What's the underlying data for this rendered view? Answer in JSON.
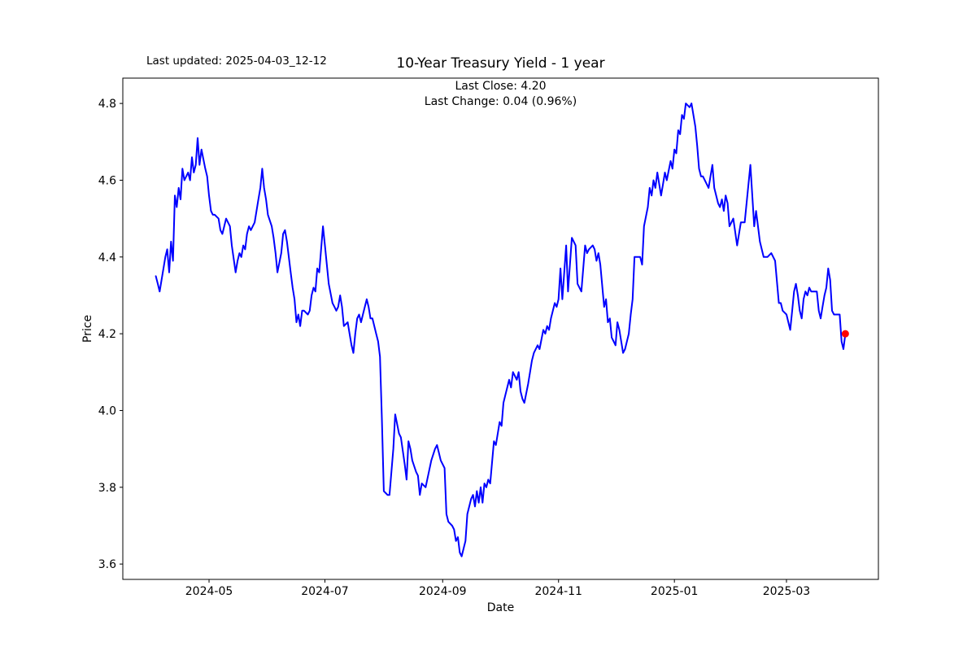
{
  "figure": {
    "last_updated_text": "Last updated: 2025-04-03_12-12",
    "title": "10-Year Treasury Yield - 1 year",
    "subtitle_lines": [
      "Last Close: 4.20",
      "Last Change: 0.04 (0.96%)"
    ],
    "background_color": "#ffffff",
    "text_color": "#000000"
  },
  "chart_data": {
    "type": "line",
    "title": "10-Year Treasury Yield - 1 year",
    "xlabel": "Date",
    "ylabel": "Price",
    "grid": false,
    "legend": "none",
    "line_color": "#0000ff",
    "marker_color": "#ff0000",
    "axis_color": "#000000",
    "last_close": "4.20",
    "last_change": "0.04 (0.96%)",
    "x_start_date": "2024-04-03",
    "x_domain_days": [
      -17.4,
      380.4
    ],
    "y_domain": [
      3.56,
      4.866
    ],
    "x_ticks": [
      {
        "day": 28,
        "label": "2024-05"
      },
      {
        "day": 89,
        "label": "2024-07"
      },
      {
        "day": 151,
        "label": "2024-09"
      },
      {
        "day": 212,
        "label": "2024-11"
      },
      {
        "day": 273,
        "label": "2025-01"
      },
      {
        "day": 332,
        "label": "2025-03"
      }
    ],
    "y_ticks": [
      {
        "value": 3.6,
        "label": "3.6"
      },
      {
        "value": 3.8,
        "label": "3.8"
      },
      {
        "value": 4.0,
        "label": "4.0"
      },
      {
        "value": 4.2,
        "label": "4.2"
      },
      {
        "value": 4.4,
        "label": "4.4"
      },
      {
        "value": 4.6,
        "label": "4.6"
      },
      {
        "value": 4.8,
        "label": "4.8"
      }
    ],
    "last_point_marker": {
      "day": 363,
      "value": 4.2,
      "color": "#ff0000"
    },
    "series": [
      {
        "name": "10-Year Treasury Yield",
        "points": [
          [
            0,
            4.35
          ],
          [
            1,
            4.33
          ],
          [
            2,
            4.31
          ],
          [
            5,
            4.4
          ],
          [
            6,
            4.42
          ],
          [
            7,
            4.36
          ],
          [
            8,
            4.44
          ],
          [
            9,
            4.39
          ],
          [
            10,
            4.56
          ],
          [
            11,
            4.53
          ],
          [
            12,
            4.58
          ],
          [
            13,
            4.55
          ],
          [
            14,
            4.63
          ],
          [
            15,
            4.6
          ],
          [
            17,
            4.62
          ],
          [
            18,
            4.6
          ],
          [
            19,
            4.66
          ],
          [
            20,
            4.62
          ],
          [
            21,
            4.64
          ],
          [
            22,
            4.71
          ],
          [
            23,
            4.64
          ],
          [
            24,
            4.68
          ],
          [
            26,
            4.63
          ],
          [
            27,
            4.61
          ],
          [
            28,
            4.56
          ],
          [
            29,
            4.52
          ],
          [
            30,
            4.51
          ],
          [
            31,
            4.51
          ],
          [
            33,
            4.5
          ],
          [
            34,
            4.47
          ],
          [
            35,
            4.46
          ],
          [
            36,
            4.48
          ],
          [
            37,
            4.5
          ],
          [
            39,
            4.48
          ],
          [
            40,
            4.43
          ],
          [
            42,
            4.36
          ],
          [
            43,
            4.39
          ],
          [
            44,
            4.41
          ],
          [
            45,
            4.4
          ],
          [
            46,
            4.43
          ],
          [
            47,
            4.42
          ],
          [
            48,
            4.46
          ],
          [
            49,
            4.48
          ],
          [
            50,
            4.47
          ],
          [
            52,
            4.49
          ],
          [
            54,
            4.55
          ],
          [
            55,
            4.58
          ],
          [
            56,
            4.63
          ],
          [
            57,
            4.58
          ],
          [
            58,
            4.55
          ],
          [
            59,
            4.51
          ],
          [
            61,
            4.48
          ],
          [
            62,
            4.45
          ],
          [
            63,
            4.41
          ],
          [
            64,
            4.36
          ],
          [
            66,
            4.41
          ],
          [
            67,
            4.46
          ],
          [
            68,
            4.47
          ],
          [
            69,
            4.44
          ],
          [
            71,
            4.36
          ],
          [
            72,
            4.32
          ],
          [
            73,
            4.29
          ],
          [
            74,
            4.23
          ],
          [
            75,
            4.25
          ],
          [
            76,
            4.22
          ],
          [
            77,
            4.26
          ],
          [
            78,
            4.26
          ],
          [
            80,
            4.25
          ],
          [
            81,
            4.26
          ],
          [
            82,
            4.3
          ],
          [
            83,
            4.32
          ],
          [
            84,
            4.31
          ],
          [
            85,
            4.37
          ],
          [
            86,
            4.36
          ],
          [
            88,
            4.48
          ],
          [
            89,
            4.43
          ],
          [
            91,
            4.33
          ],
          [
            93,
            4.28
          ],
          [
            94,
            4.27
          ],
          [
            95,
            4.26
          ],
          [
            96,
            4.27
          ],
          [
            97,
            4.3
          ],
          [
            98,
            4.27
          ],
          [
            99,
            4.22
          ],
          [
            101,
            4.23
          ],
          [
            102,
            4.2
          ],
          [
            103,
            4.17
          ],
          [
            104,
            4.15
          ],
          [
            105,
            4.2
          ],
          [
            106,
            4.24
          ],
          [
            107,
            4.25
          ],
          [
            108,
            4.23
          ],
          [
            109,
            4.25
          ],
          [
            111,
            4.29
          ],
          [
            112,
            4.27
          ],
          [
            113,
            4.24
          ],
          [
            114,
            4.24
          ],
          [
            116,
            4.2
          ],
          [
            117,
            4.18
          ],
          [
            118,
            4.14
          ],
          [
            119,
            3.98
          ],
          [
            120,
            3.79
          ],
          [
            122,
            3.78
          ],
          [
            123,
            3.78
          ],
          [
            125,
            3.9
          ],
          [
            126,
            3.99
          ],
          [
            128,
            3.94
          ],
          [
            129,
            3.93
          ],
          [
            131,
            3.86
          ],
          [
            132,
            3.82
          ],
          [
            133,
            3.92
          ],
          [
            134,
            3.9
          ],
          [
            135,
            3.87
          ],
          [
            137,
            3.84
          ],
          [
            138,
            3.83
          ],
          [
            139,
            3.78
          ],
          [
            140,
            3.81
          ],
          [
            142,
            3.8
          ],
          [
            145,
            3.87
          ],
          [
            147,
            3.9
          ],
          [
            148,
            3.91
          ],
          [
            149,
            3.89
          ],
          [
            150,
            3.87
          ],
          [
            152,
            3.85
          ],
          [
            153,
            3.73
          ],
          [
            154,
            3.71
          ],
          [
            156,
            3.7
          ],
          [
            157,
            3.69
          ],
          [
            158,
            3.66
          ],
          [
            159,
            3.67
          ],
          [
            160,
            3.63
          ],
          [
            161,
            3.62
          ],
          [
            163,
            3.66
          ],
          [
            164,
            3.73
          ],
          [
            166,
            3.77
          ],
          [
            167,
            3.78
          ],
          [
            168,
            3.75
          ],
          [
            169,
            3.79
          ],
          [
            170,
            3.76
          ],
          [
            171,
            3.8
          ],
          [
            172,
            3.76
          ],
          [
            173,
            3.81
          ],
          [
            174,
            3.8
          ],
          [
            175,
            3.82
          ],
          [
            176,
            3.81
          ],
          [
            178,
            3.92
          ],
          [
            179,
            3.91
          ],
          [
            181,
            3.97
          ],
          [
            182,
            3.96
          ],
          [
            183,
            4.02
          ],
          [
            184,
            4.04
          ],
          [
            186,
            4.08
          ],
          [
            187,
            4.06
          ],
          [
            188,
            4.1
          ],
          [
            190,
            4.08
          ],
          [
            191,
            4.1
          ],
          [
            192,
            4.05
          ],
          [
            193,
            4.03
          ],
          [
            194,
            4.02
          ],
          [
            196,
            4.07
          ],
          [
            197,
            4.1
          ],
          [
            198,
            4.13
          ],
          [
            199,
            4.15
          ],
          [
            201,
            4.17
          ],
          [
            202,
            4.16
          ],
          [
            204,
            4.21
          ],
          [
            205,
            4.2
          ],
          [
            206,
            4.22
          ],
          [
            207,
            4.21
          ],
          [
            208,
            4.24
          ],
          [
            210,
            4.28
          ],
          [
            211,
            4.27
          ],
          [
            212,
            4.29
          ],
          [
            213,
            4.37
          ],
          [
            214,
            4.29
          ],
          [
            216,
            4.43
          ],
          [
            217,
            4.31
          ],
          [
            219,
            4.45
          ],
          [
            221,
            4.43
          ],
          [
            222,
            4.33
          ],
          [
            224,
            4.31
          ],
          [
            226,
            4.43
          ],
          [
            227,
            4.41
          ],
          [
            228,
            4.42
          ],
          [
            230,
            4.43
          ],
          [
            231,
            4.42
          ],
          [
            232,
            4.39
          ],
          [
            233,
            4.41
          ],
          [
            234,
            4.38
          ],
          [
            236,
            4.27
          ],
          [
            237,
            4.29
          ],
          [
            238,
            4.23
          ],
          [
            239,
            4.24
          ],
          [
            240,
            4.19
          ],
          [
            241,
            4.18
          ],
          [
            242,
            4.17
          ],
          [
            243,
            4.23
          ],
          [
            244,
            4.21
          ],
          [
            245,
            4.18
          ],
          [
            246,
            4.15
          ],
          [
            247,
            4.16
          ],
          [
            249,
            4.2
          ],
          [
            250,
            4.25
          ],
          [
            251,
            4.29
          ],
          [
            252,
            4.4
          ],
          [
            254,
            4.4
          ],
          [
            255,
            4.4
          ],
          [
            256,
            4.38
          ],
          [
            257,
            4.48
          ],
          [
            259,
            4.53
          ],
          [
            260,
            4.58
          ],
          [
            261,
            4.56
          ],
          [
            262,
            4.6
          ],
          [
            263,
            4.58
          ],
          [
            264,
            4.62
          ],
          [
            266,
            4.56
          ],
          [
            267,
            4.59
          ],
          [
            268,
            4.62
          ],
          [
            269,
            4.6
          ],
          [
            271,
            4.65
          ],
          [
            272,
            4.63
          ],
          [
            273,
            4.68
          ],
          [
            274,
            4.67
          ],
          [
            275,
            4.73
          ],
          [
            276,
            4.72
          ],
          [
            277,
            4.77
          ],
          [
            278,
            4.76
          ],
          [
            279,
            4.8
          ],
          [
            281,
            4.79
          ],
          [
            282,
            4.8
          ],
          [
            284,
            4.74
          ],
          [
            285,
            4.69
          ],
          [
            286,
            4.63
          ],
          [
            287,
            4.61
          ],
          [
            288,
            4.61
          ],
          [
            290,
            4.59
          ],
          [
            291,
            4.58
          ],
          [
            293,
            4.64
          ],
          [
            294,
            4.58
          ],
          [
            296,
            4.54
          ],
          [
            297,
            4.53
          ],
          [
            298,
            4.55
          ],
          [
            299,
            4.52
          ],
          [
            300,
            4.56
          ],
          [
            301,
            4.54
          ],
          [
            302,
            4.48
          ],
          [
            304,
            4.5
          ],
          [
            306,
            4.43
          ],
          [
            308,
            4.49
          ],
          [
            310,
            4.49
          ],
          [
            313,
            4.64
          ],
          [
            315,
            4.48
          ],
          [
            316,
            4.52
          ],
          [
            318,
            4.44
          ],
          [
            319,
            4.42
          ],
          [
            320,
            4.4
          ],
          [
            322,
            4.4
          ],
          [
            324,
            4.41
          ],
          [
            326,
            4.39
          ],
          [
            328,
            4.28
          ],
          [
            329,
            4.28
          ],
          [
            330,
            4.26
          ],
          [
            332,
            4.25
          ],
          [
            333,
            4.23
          ],
          [
            334,
            4.21
          ],
          [
            335,
            4.26
          ],
          [
            336,
            4.31
          ],
          [
            337,
            4.33
          ],
          [
            338,
            4.3
          ],
          [
            339,
            4.26
          ],
          [
            340,
            4.24
          ],
          [
            341,
            4.29
          ],
          [
            342,
            4.31
          ],
          [
            343,
            4.3
          ],
          [
            344,
            4.32
          ],
          [
            345,
            4.31
          ],
          [
            346,
            4.31
          ],
          [
            348,
            4.31
          ],
          [
            349,
            4.26
          ],
          [
            350,
            4.24
          ],
          [
            351,
            4.27
          ],
          [
            352,
            4.3
          ],
          [
            353,
            4.32
          ],
          [
            354,
            4.37
          ],
          [
            355,
            4.34
          ],
          [
            356,
            4.26
          ],
          [
            357,
            4.25
          ],
          [
            359,
            4.25
          ],
          [
            360,
            4.25
          ],
          [
            361,
            4.18
          ],
          [
            362,
            4.16
          ],
          [
            363,
            4.2
          ]
        ]
      }
    ]
  }
}
